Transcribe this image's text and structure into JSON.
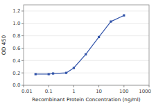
{
  "chart_data": {
    "type": "line",
    "xlabel": "Recombinant Protein Concentration (ng/ml)",
    "ylabel": "OD 450",
    "x": [
      0.03,
      0.1,
      0.15,
      0.5,
      1,
      3,
      10,
      30,
      100
    ],
    "values": [
      0.18,
      0.18,
      0.19,
      0.2,
      0.28,
      0.5,
      0.78,
      1.03,
      1.13
    ],
    "color": "#3355aa",
    "marker": "square",
    "log": "x",
    "xlim": [
      0.01,
      1000
    ],
    "ylim": [
      0.0,
      1.3
    ],
    "xticks": [
      0.01,
      0.1,
      1,
      10,
      100,
      1000
    ],
    "yticks": [
      {
        "value": 0.0,
        "label": "0.0"
      },
      0.2,
      0.4,
      0.6,
      0.8,
      {
        "value": 1.0,
        "label": "1.0"
      },
      1.2
    ],
    "grid": "y"
  }
}
